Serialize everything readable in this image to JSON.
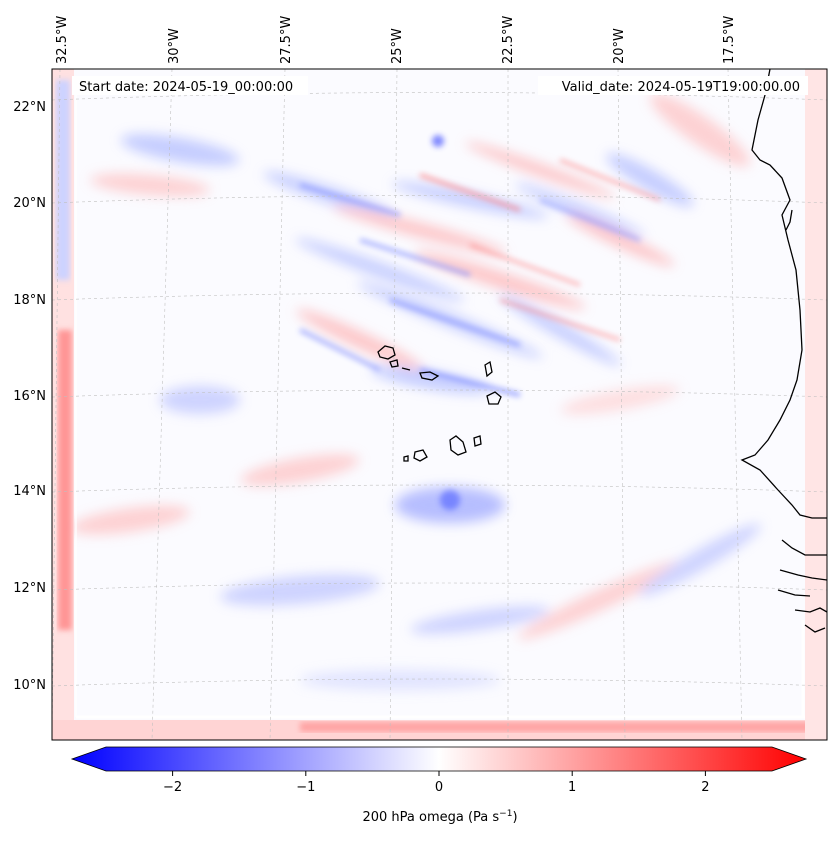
{
  "map": {
    "start_date": "Start date: 2024-05-19_00:00:00",
    "valid_date": "Valid_date: 2024-05-19T19:00:00.00",
    "lon_labels": [
      "32.5°W",
      "30°W",
      "27.5°W",
      "25°W",
      "22.5°W",
      "20°W",
      "17.5°W"
    ],
    "lat_labels": [
      "22°N",
      "20°N",
      "18°N",
      "16°N",
      "14°N",
      "12°N",
      "10°N"
    ],
    "field_colors": {
      "negative": "#0000ff",
      "neutral": "#ffffff",
      "positive": "#ff0000"
    }
  },
  "colorbar": {
    "label": "200 hPa omega (Pa s",
    "label_exp": "−1",
    "label_end": ")",
    "ticks": [
      "−2",
      "−1",
      "0",
      "1",
      "2"
    ],
    "range": [
      -2.6,
      2.6
    ]
  }
}
